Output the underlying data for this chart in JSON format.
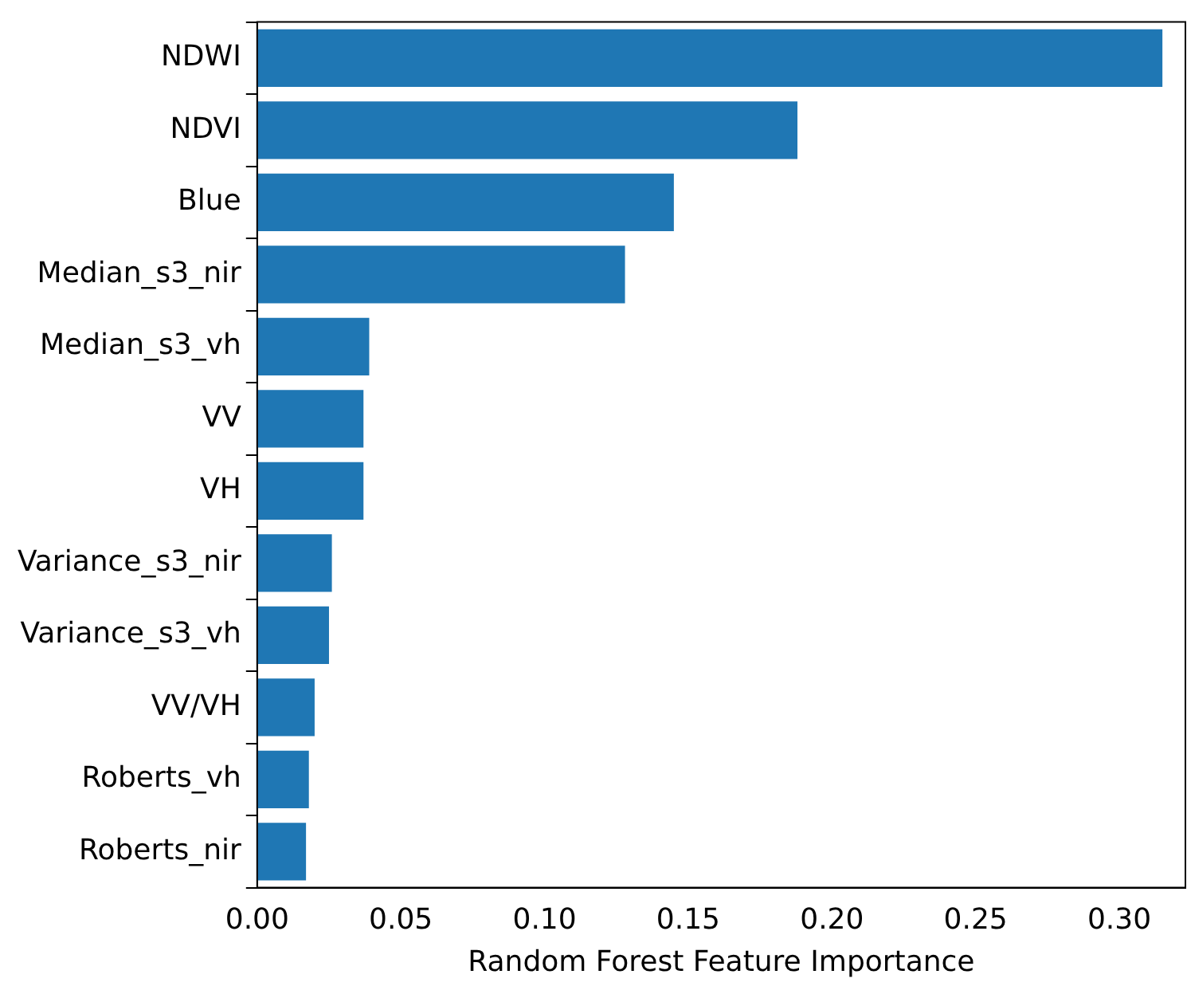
{
  "chart_data": {
    "type": "bar",
    "orientation": "horizontal",
    "xlabel": "Random Forest Feature Importance",
    "categories": [
      "NDWI",
      "NDVI",
      "Blue",
      "Median_s3_nir",
      "Median_s3_vh",
      "VV",
      "VH",
      "Variance_s3_nir",
      "Variance_s3_vh",
      "VV/VH",
      "Roberts_vh",
      "Roberts_nir"
    ],
    "values": [
      0.315,
      0.188,
      0.145,
      0.128,
      0.039,
      0.037,
      0.037,
      0.026,
      0.025,
      0.02,
      0.018,
      0.017
    ],
    "color": "#1f77b4",
    "xlim": [
      0,
      0.323
    ],
    "xticks": [
      {
        "value": 0,
        "label": "0.00"
      },
      {
        "value": 0.05,
        "label": "0.05"
      },
      {
        "value": 0.1,
        "label": "0.10"
      },
      {
        "value": 0.15,
        "label": "0.15"
      },
      {
        "value": 0.2,
        "label": "0.20"
      },
      {
        "value": 0.25,
        "label": "0.25"
      },
      {
        "value": 0.3,
        "label": "0.30"
      }
    ],
    "grid": false,
    "legend": false
  }
}
